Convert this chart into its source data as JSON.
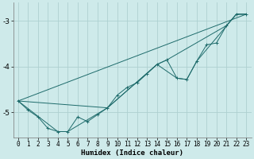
{
  "xlabel": "Humidex (Indice chaleur)",
  "background_color": "#ceeaea",
  "grid_color": "#aed0d0",
  "line_color": "#1e6b6b",
  "xlim": [
    -0.5,
    23.5
  ],
  "ylim": [
    -5.55,
    -2.6
  ],
  "yticks": [
    -5,
    -4,
    -3
  ],
  "xticks": [
    0,
    1,
    2,
    3,
    4,
    5,
    6,
    7,
    8,
    9,
    10,
    11,
    12,
    13,
    14,
    15,
    16,
    17,
    18,
    19,
    20,
    21,
    22,
    23
  ],
  "main_series": [
    [
      0,
      -4.75
    ],
    [
      1,
      -4.95
    ],
    [
      2,
      -5.1
    ],
    [
      3,
      -5.35
    ],
    [
      4,
      -5.42
    ],
    [
      5,
      -5.42
    ],
    [
      6,
      -5.1
    ],
    [
      7,
      -5.2
    ],
    [
      8,
      -5.05
    ],
    [
      9,
      -4.9
    ],
    [
      10,
      -4.62
    ],
    [
      11,
      -4.45
    ],
    [
      12,
      -4.35
    ],
    [
      13,
      -4.15
    ],
    [
      14,
      -3.95
    ],
    [
      15,
      -3.85
    ],
    [
      16,
      -4.25
    ],
    [
      17,
      -4.28
    ],
    [
      18,
      -3.88
    ],
    [
      19,
      -3.52
    ],
    [
      20,
      -3.48
    ],
    [
      21,
      -3.1
    ],
    [
      22,
      -2.85
    ],
    [
      23,
      -2.85
    ]
  ],
  "straight_line": [
    [
      0,
      -4.75
    ],
    [
      23,
      -2.85
    ]
  ],
  "upper_line": [
    [
      0,
      -4.75
    ],
    [
      9,
      -4.9
    ],
    [
      14,
      -3.95
    ],
    [
      15,
      -3.85
    ],
    [
      21,
      -3.1
    ],
    [
      22,
      -2.85
    ],
    [
      23,
      -2.85
    ]
  ],
  "lower_line": [
    [
      0,
      -4.75
    ],
    [
      4,
      -5.42
    ],
    [
      5,
      -5.42
    ],
    [
      9,
      -4.9
    ],
    [
      14,
      -3.95
    ],
    [
      16,
      -4.25
    ],
    [
      17,
      -4.28
    ],
    [
      18,
      -3.88
    ],
    [
      22,
      -2.85
    ],
    [
      23,
      -2.85
    ]
  ]
}
